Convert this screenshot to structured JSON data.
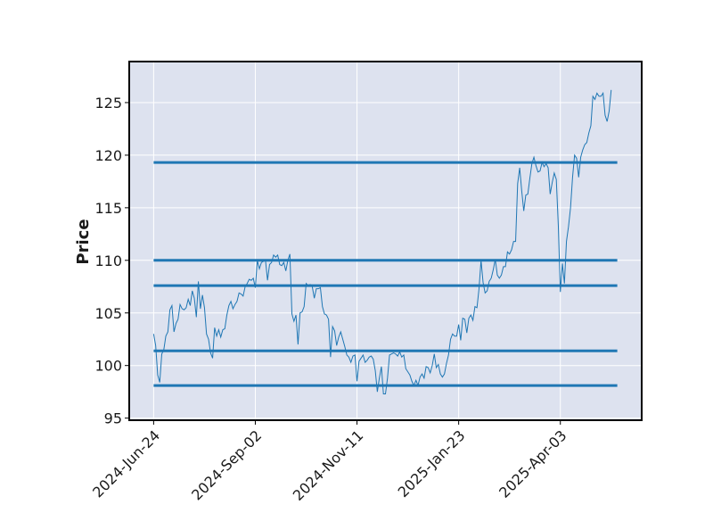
{
  "chart_data": {
    "type": "line",
    "title": "",
    "xlabel": "",
    "ylabel": "Price",
    "ylim": [
      94.8,
      128.9
    ],
    "grid": true,
    "x_ticks": [
      {
        "label": "2024-Jun-24",
        "index": 0
      },
      {
        "label": "2024-Sep-02",
        "index": 50
      },
      {
        "label": "2024-Nov-11",
        "index": 100
      },
      {
        "label": "2025-Jan-23",
        "index": 150
      },
      {
        "label": "2025-Apr-03",
        "index": 200
      }
    ],
    "y_ticks": [
      95,
      100,
      105,
      110,
      115,
      120,
      125
    ],
    "x_domain": [
      -12,
      240
    ],
    "x_range": [
      0,
      228
    ],
    "horizontal_lines": [
      119.3,
      110.0,
      107.6,
      101.4,
      98.1
    ],
    "series": [
      {
        "color": "#1f77b4",
        "values": [
          103.0,
          101.9,
          99.1,
          98.4,
          101.1,
          101.5,
          102.8,
          103.2,
          105.3,
          105.7,
          103.2,
          104.0,
          104.4,
          105.8,
          105.4,
          105.3,
          105.5,
          106.3,
          105.7,
          107.1,
          106.4,
          104.6,
          108.0,
          105.4,
          106.7,
          105.5,
          103.0,
          102.5,
          101.2,
          100.7,
          103.6,
          102.8,
          103.4,
          102.7,
          103.4,
          103.5,
          104.8,
          105.7,
          106.1,
          105.4,
          105.8,
          106.1,
          106.9,
          106.8,
          106.6,
          107.5,
          107.8,
          108.2,
          108.1,
          108.3,
          107.4,
          110.0,
          109.2,
          109.8,
          109.9,
          110.0,
          108.1,
          109.6,
          109.8,
          110.5,
          110.3,
          110.5,
          109.6,
          109.5,
          109.8,
          109.0,
          110.0,
          110.6,
          104.9,
          104.2,
          104.8,
          102.0,
          105.0,
          105.1,
          105.6,
          107.8,
          107.6,
          107.7,
          107.5,
          106.4,
          107.3,
          107.3,
          107.4,
          105.6,
          104.9,
          104.8,
          104.4,
          100.8,
          103.7,
          103.3,
          101.9,
          102.7,
          103.2,
          102.5,
          101.8,
          101.0,
          100.8,
          100.3,
          100.9,
          101.0,
          98.5,
          100.4,
          100.7,
          101.0,
          100.3,
          100.5,
          100.8,
          100.9,
          100.6,
          99.5,
          97.5,
          98.8,
          99.9,
          97.3,
          97.3,
          98.8,
          101.0,
          101.1,
          101.2,
          101.1,
          100.9,
          101.3,
          100.8,
          101.0,
          99.7,
          99.4,
          99.1,
          98.5,
          98.1,
          98.6,
          98.1,
          98.9,
          99.2,
          98.8,
          99.9,
          99.8,
          99.3,
          100.0,
          101.1,
          99.8,
          100.1,
          99.2,
          98.9,
          99.2,
          100.2,
          101.0,
          102.5,
          103.0,
          102.8,
          102.8,
          103.9,
          102.4,
          104.5,
          104.4,
          103.1,
          104.5,
          104.8,
          104.3,
          105.6,
          105.5,
          107.3,
          110.0,
          107.9,
          106.9,
          107.1,
          108.0,
          108.3,
          109.1,
          110.1,
          108.6,
          108.3,
          108.6,
          109.4,
          109.4,
          110.8,
          110.6,
          111.0,
          111.8,
          111.8,
          117.3,
          118.8,
          116.6,
          114.7,
          116.2,
          116.3,
          117.8,
          119.2,
          119.8,
          119.0,
          118.4,
          118.5,
          119.3,
          118.9,
          119.2,
          118.8,
          116.3,
          117.4,
          118.3,
          117.7,
          113.3,
          107.0,
          109.7,
          107.8,
          111.8,
          113.2,
          115.0,
          117.9,
          120.0,
          119.7,
          117.9,
          119.8,
          120.5,
          121.0,
          121.2,
          122.1,
          122.8,
          125.6,
          125.3,
          125.9,
          125.6,
          125.6,
          125.9,
          123.8,
          123.2,
          124.2,
          126.2
        ]
      }
    ]
  }
}
